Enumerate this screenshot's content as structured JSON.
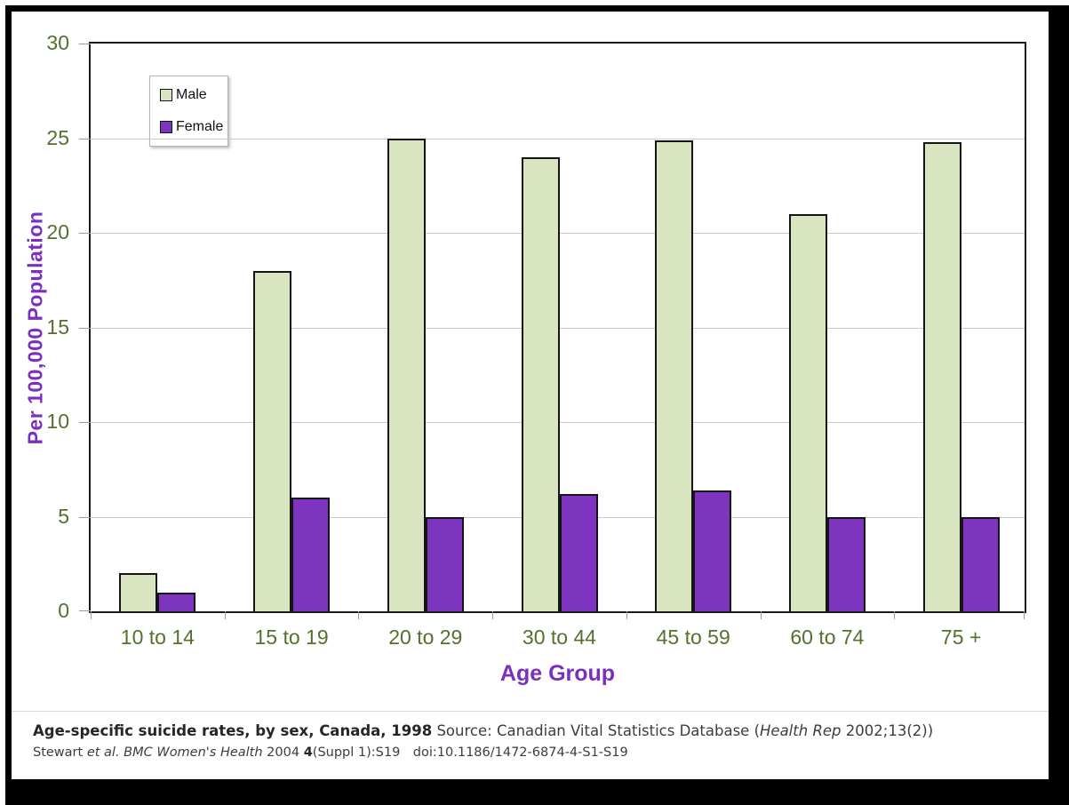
{
  "colors": {
    "male_fill": "#d9e5c1",
    "female_fill": "#7d35c0",
    "axis_title": "#7b2fbf",
    "tick_label": "#55702e",
    "bar_border": "#151515",
    "gridline": "#c9c9c9"
  },
  "chart_data": {
    "type": "bar",
    "title": "",
    "categories": [
      "10 to 14",
      "15 to 19",
      "20 to 29",
      "30 to 44",
      "45 to 59",
      "60 to 74",
      "75 +"
    ],
    "series": [
      {
        "name": "Male",
        "color": "#d9e5c1",
        "values": [
          2,
          18,
          25,
          24,
          24.9,
          21,
          24.8
        ]
      },
      {
        "name": "Female",
        "color": "#7d35c0",
        "values": [
          1,
          6,
          5,
          6.2,
          6.4,
          5,
          5
        ]
      }
    ],
    "xlabel": "Age Group",
    "ylabel": "Per 100,000 Population",
    "ylim": [
      0,
      30
    ],
    "yticks": [
      0,
      5,
      10,
      15,
      20,
      25,
      30
    ],
    "grid": true,
    "legend_position": "top-left"
  },
  "caption": {
    "line1": [
      {
        "text": "Age-specific suicide rates, by sex, Canada, 1998",
        "bold": true
      },
      {
        "text": " Source: Canadian Vital Statistics Database ("
      },
      {
        "text": "Health Rep",
        "italic": true
      },
      {
        "text": " 2002;13(2))"
      }
    ],
    "line2": [
      {
        "text": "Stewart "
      },
      {
        "text": "et al. BMC Women's Health",
        "italic": true
      },
      {
        "text": " 2004 "
      },
      {
        "text": "4",
        "bold": true
      },
      {
        "text": "(Suppl 1):S19 doi:10.1186/1472-6874-4-S1-S19"
      }
    ]
  }
}
